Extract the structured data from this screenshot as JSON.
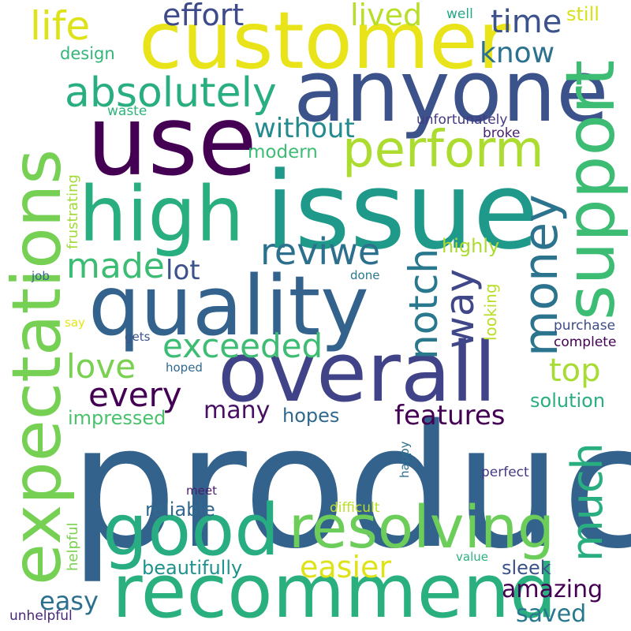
{
  "words": [
    {
      "text": "product",
      "color": "#33638d"
    },
    {
      "text": "issue",
      "color": "#1f9a8a"
    },
    {
      "text": "customer",
      "color": "#e8e419"
    },
    {
      "text": "anyone",
      "color": "#3b528b"
    },
    {
      "text": "use",
      "color": "#440154"
    },
    {
      "text": "high",
      "color": "#29af7f"
    },
    {
      "text": "quality",
      "color": "#33638d"
    },
    {
      "text": "overall",
      "color": "#404387"
    },
    {
      "text": "recommend",
      "color": "#2ab07f"
    },
    {
      "text": "good",
      "color": "#27ad81"
    },
    {
      "text": "resolving",
      "color": "#6ccd5a"
    },
    {
      "text": "perform",
      "color": "#addc30"
    },
    {
      "text": "expectations",
      "color": "#75d054"
    },
    {
      "text": "support",
      "color": "#3dbc74"
    },
    {
      "text": "money",
      "color": "#2c738e"
    },
    {
      "text": "much",
      "color": "#29af7f"
    },
    {
      "text": "way",
      "color": "#3f4788"
    },
    {
      "text": "notch",
      "color": "#2a788e"
    },
    {
      "text": "absolutely",
      "color": "#29af7f"
    },
    {
      "text": "life",
      "color": "#dde318"
    },
    {
      "text": "effort",
      "color": "#3e4a89"
    },
    {
      "text": "lived",
      "color": "#b8de29"
    },
    {
      "text": "time",
      "color": "#3b528b"
    },
    {
      "text": "know",
      "color": "#2c718e"
    },
    {
      "text": "still",
      "color": "#d8e219"
    },
    {
      "text": "well",
      "color": "#22a785"
    },
    {
      "text": "design",
      "color": "#34b679"
    },
    {
      "text": "waste",
      "color": "#2eb37c"
    },
    {
      "text": "without",
      "color": "#238a8d"
    },
    {
      "text": "unfortunately",
      "color": "#443983"
    },
    {
      "text": "modern",
      "color": "#3dbc74"
    },
    {
      "text": "broke",
      "color": "#481f70"
    },
    {
      "text": "frustrating",
      "color": "#a2da37"
    },
    {
      "text": "reviwe",
      "color": "#2d708e"
    },
    {
      "text": "made",
      "color": "#3dbc74"
    },
    {
      "text": "lot",
      "color": "#3b528b"
    },
    {
      "text": "highly",
      "color": "#addc30"
    },
    {
      "text": "exceeded",
      "color": "#3dbc74"
    },
    {
      "text": "love",
      "color": "#7ad151"
    },
    {
      "text": "top",
      "color": "#a8db34"
    },
    {
      "text": "every",
      "color": "#440154"
    },
    {
      "text": "many",
      "color": "#471063"
    },
    {
      "text": "features",
      "color": "#440154"
    },
    {
      "text": "solution",
      "color": "#29af7f"
    },
    {
      "text": "impressed",
      "color": "#4ac16d"
    },
    {
      "text": "hopes",
      "color": "#31688e"
    },
    {
      "text": "looking",
      "color": "#bade28"
    },
    {
      "text": "job",
      "color": "#33638d"
    },
    {
      "text": "done",
      "color": "#2a788e"
    },
    {
      "text": "say",
      "color": "#e5e419"
    },
    {
      "text": "gets",
      "color": "#3a548c"
    },
    {
      "text": "hoped",
      "color": "#31688e"
    },
    {
      "text": "purchase",
      "color": "#3e4c8a"
    },
    {
      "text": "complete",
      "color": "#440154"
    },
    {
      "text": "happy",
      "color": "#2e6e8e"
    },
    {
      "text": "perfect",
      "color": "#443983"
    },
    {
      "text": "reliable",
      "color": "#31688e"
    },
    {
      "text": "meet",
      "color": "#481b6d"
    },
    {
      "text": "difficult",
      "color": "#bade28"
    },
    {
      "text": "helpful",
      "color": "#7ad151"
    },
    {
      "text": "easy",
      "color": "#2d708e"
    },
    {
      "text": "easier",
      "color": "#dde318"
    },
    {
      "text": "amazing",
      "color": "#440154"
    },
    {
      "text": "beautifully",
      "color": "#20928c"
    },
    {
      "text": "value",
      "color": "#2db27d"
    },
    {
      "text": "sleek",
      "color": "#3b528b"
    },
    {
      "text": "saved",
      "color": "#2a788e"
    },
    {
      "text": "unhelpful",
      "color": "#482878"
    }
  ]
}
